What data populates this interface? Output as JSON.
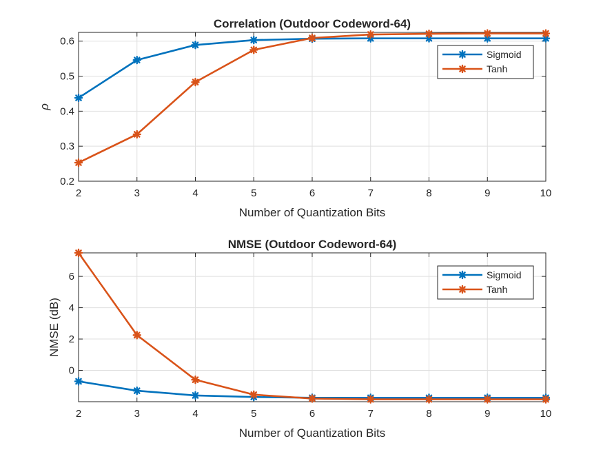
{
  "chart_data": [
    {
      "type": "line",
      "title": "Correlation (Outdoor Codeword-64)",
      "xlabel": "Number of Quantization Bits",
      "ylabel": "ρ",
      "x": [
        2,
        3,
        4,
        5,
        6,
        7,
        8,
        9,
        10
      ],
      "xlim": [
        2,
        10
      ],
      "ylim": [
        0.2,
        0.625
      ],
      "yticks": [
        0.2,
        0.3,
        0.4,
        0.5,
        0.6
      ],
      "xticks": [
        2,
        3,
        4,
        5,
        6,
        7,
        8,
        9,
        10
      ],
      "grid": true,
      "legend_position": "top-right",
      "series": [
        {
          "name": "Sigmoid",
          "color": "#0072BD",
          "marker": "asterisk",
          "values": [
            0.438,
            0.546,
            0.589,
            0.603,
            0.607,
            0.608,
            0.608,
            0.608,
            0.608
          ]
        },
        {
          "name": "Tanh",
          "color": "#D95319",
          "marker": "asterisk",
          "values": [
            0.253,
            0.334,
            0.483,
            0.575,
            0.609,
            0.619,
            0.621,
            0.622,
            0.622
          ]
        }
      ]
    },
    {
      "type": "line",
      "title": "NMSE (Outdoor Codeword-64)",
      "xlabel": "Number of Quantization Bits",
      "ylabel": "NMSE (dB)",
      "x": [
        2,
        3,
        4,
        5,
        6,
        7,
        8,
        9,
        10
      ],
      "xlim": [
        2,
        10
      ],
      "ylim": [
        -2.0,
        7.5
      ],
      "yticks": [
        0,
        2,
        4,
        6
      ],
      "xticks": [
        2,
        3,
        4,
        5,
        6,
        7,
        8,
        9,
        10
      ],
      "grid": true,
      "legend_position": "top-right",
      "series": [
        {
          "name": "Sigmoid",
          "color": "#0072BD",
          "marker": "asterisk",
          "values": [
            -0.7,
            -1.3,
            -1.6,
            -1.7,
            -1.75,
            -1.75,
            -1.75,
            -1.75,
            -1.75
          ]
        },
        {
          "name": "Tanh",
          "color": "#D95319",
          "marker": "asterisk",
          "values": [
            7.5,
            2.25,
            -0.6,
            -1.55,
            -1.8,
            -1.85,
            -1.85,
            -1.85,
            -1.85
          ]
        }
      ]
    }
  ]
}
